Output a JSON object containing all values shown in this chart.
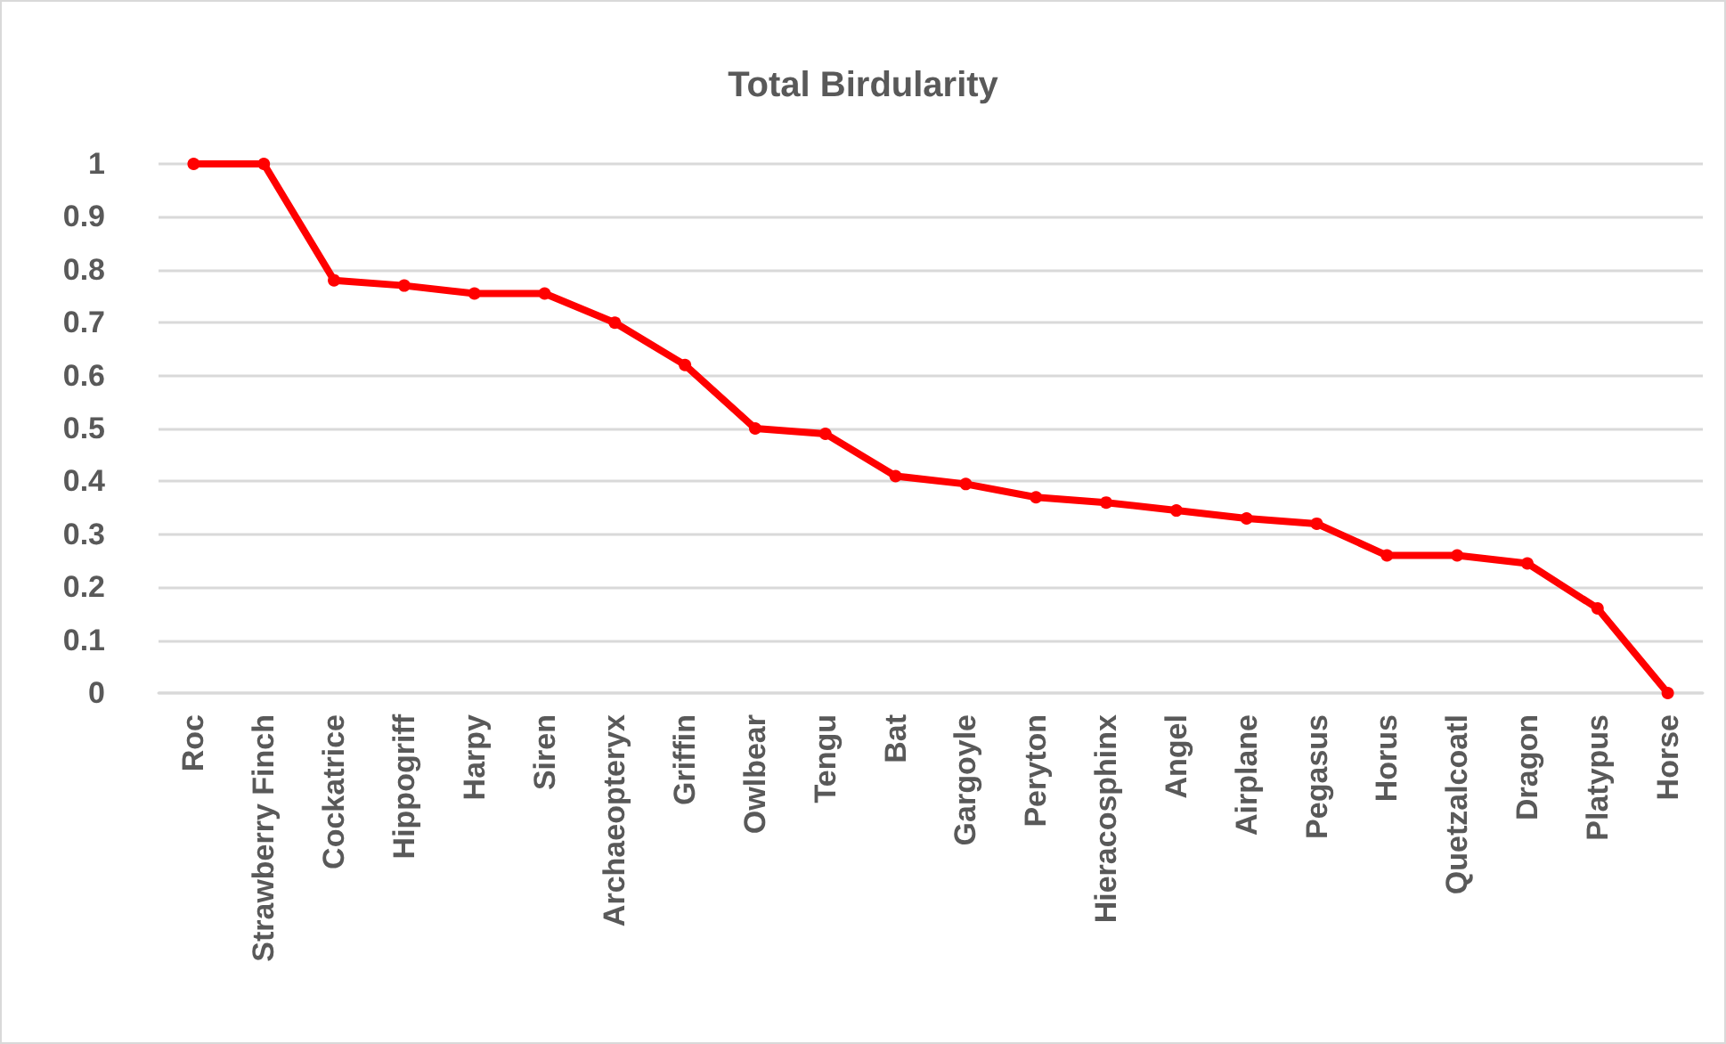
{
  "chart_data": {
    "type": "line",
    "title": "Total Birdularity",
    "categories": [
      "Roc",
      "Strawberry Finch",
      "Cockatrice",
      "Hippogriff",
      "Harpy",
      "Siren",
      "Archaeopteryx",
      "Griffin",
      "Owlbear",
      "Tengu",
      "Bat",
      "Gargoyle",
      "Peryton",
      "Hieracosphinx",
      "Angel",
      "Airplane",
      "Pegasus",
      "Horus",
      "Quetzalcoatl",
      "Dragon",
      "Platypus",
      "Horse"
    ],
    "series": [
      {
        "color": "#ff0000",
        "values": [
          1,
          1,
          0.78,
          0.77,
          0.755,
          0.755,
          0.7,
          0.62,
          0.5,
          0.49,
          0.41,
          0.395,
          0.37,
          0.36,
          0.345,
          0.33,
          0.32,
          0.26,
          0.26,
          0.245,
          0.16,
          0
        ]
      }
    ],
    "ylim": [
      0,
      1
    ],
    "yticks": [
      0,
      0.1,
      0.2,
      0.3,
      0.4,
      0.5,
      0.6,
      0.7,
      0.8,
      0.9,
      1
    ],
    "grid": "y",
    "marker": "circle",
    "line_style": "solid"
  }
}
